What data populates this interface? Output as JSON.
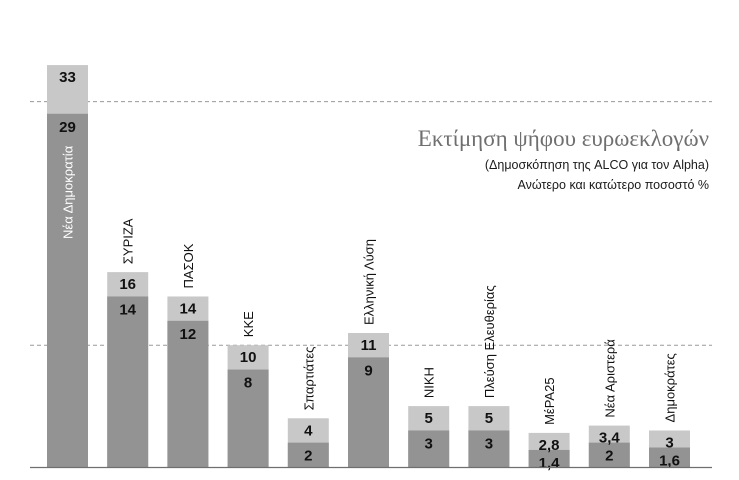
{
  "chart_data": {
    "type": "bar",
    "title": "Εκτίμηση ψήφου ευρωεκλογών",
    "subtitle": [
      "(Δημοσκόπηση της ALCO για τον Alpha)",
      "Ανώτερο και κατώτερο ποσοστό %"
    ],
    "categories": [
      "Νέα Δημοκρατία",
      "ΣΥΡΙΖΑ",
      "ΠΑΣΟΚ",
      "ΚΚΕ",
      "Σπαρτιάτες",
      "Ελληνική Λύση",
      "ΝΙΚΗ",
      "Πλεύση Ελευθερίας",
      "ΜέΡΑ25",
      "Νέα Αριστερά",
      "Δημοκράτες"
    ],
    "series": [
      {
        "name": "",
        "values": [
          29,
          14,
          12,
          8,
          2,
          9,
          3,
          3,
          1.4,
          2,
          1.6
        ]
      },
      {
        "name": "",
        "values": [
          33,
          16,
          14,
          10,
          4,
          11,
          5,
          5,
          2.8,
          3.4,
          3
        ]
      }
    ],
    "lower_labels": [
      "29",
      "14",
      "12",
      "8",
      "2",
      "9",
      "3",
      "3",
      "1,4",
      "2",
      "1,6"
    ],
    "upper_labels": [
      "33",
      "16",
      "14",
      "10",
      "4",
      "11",
      "5",
      "5",
      "2,8",
      "3,4",
      "3"
    ],
    "ylim": [
      0,
      35
    ],
    "gridlines": [
      10,
      30
    ],
    "grid": "dashed",
    "colors": {
      "lower": "#939393",
      "upper": "#c8c8c8",
      "label": "#111111",
      "label_inside_first": "#ffffff",
      "grid": "#9a9a9a",
      "axis": "#6f6f6f"
    }
  }
}
